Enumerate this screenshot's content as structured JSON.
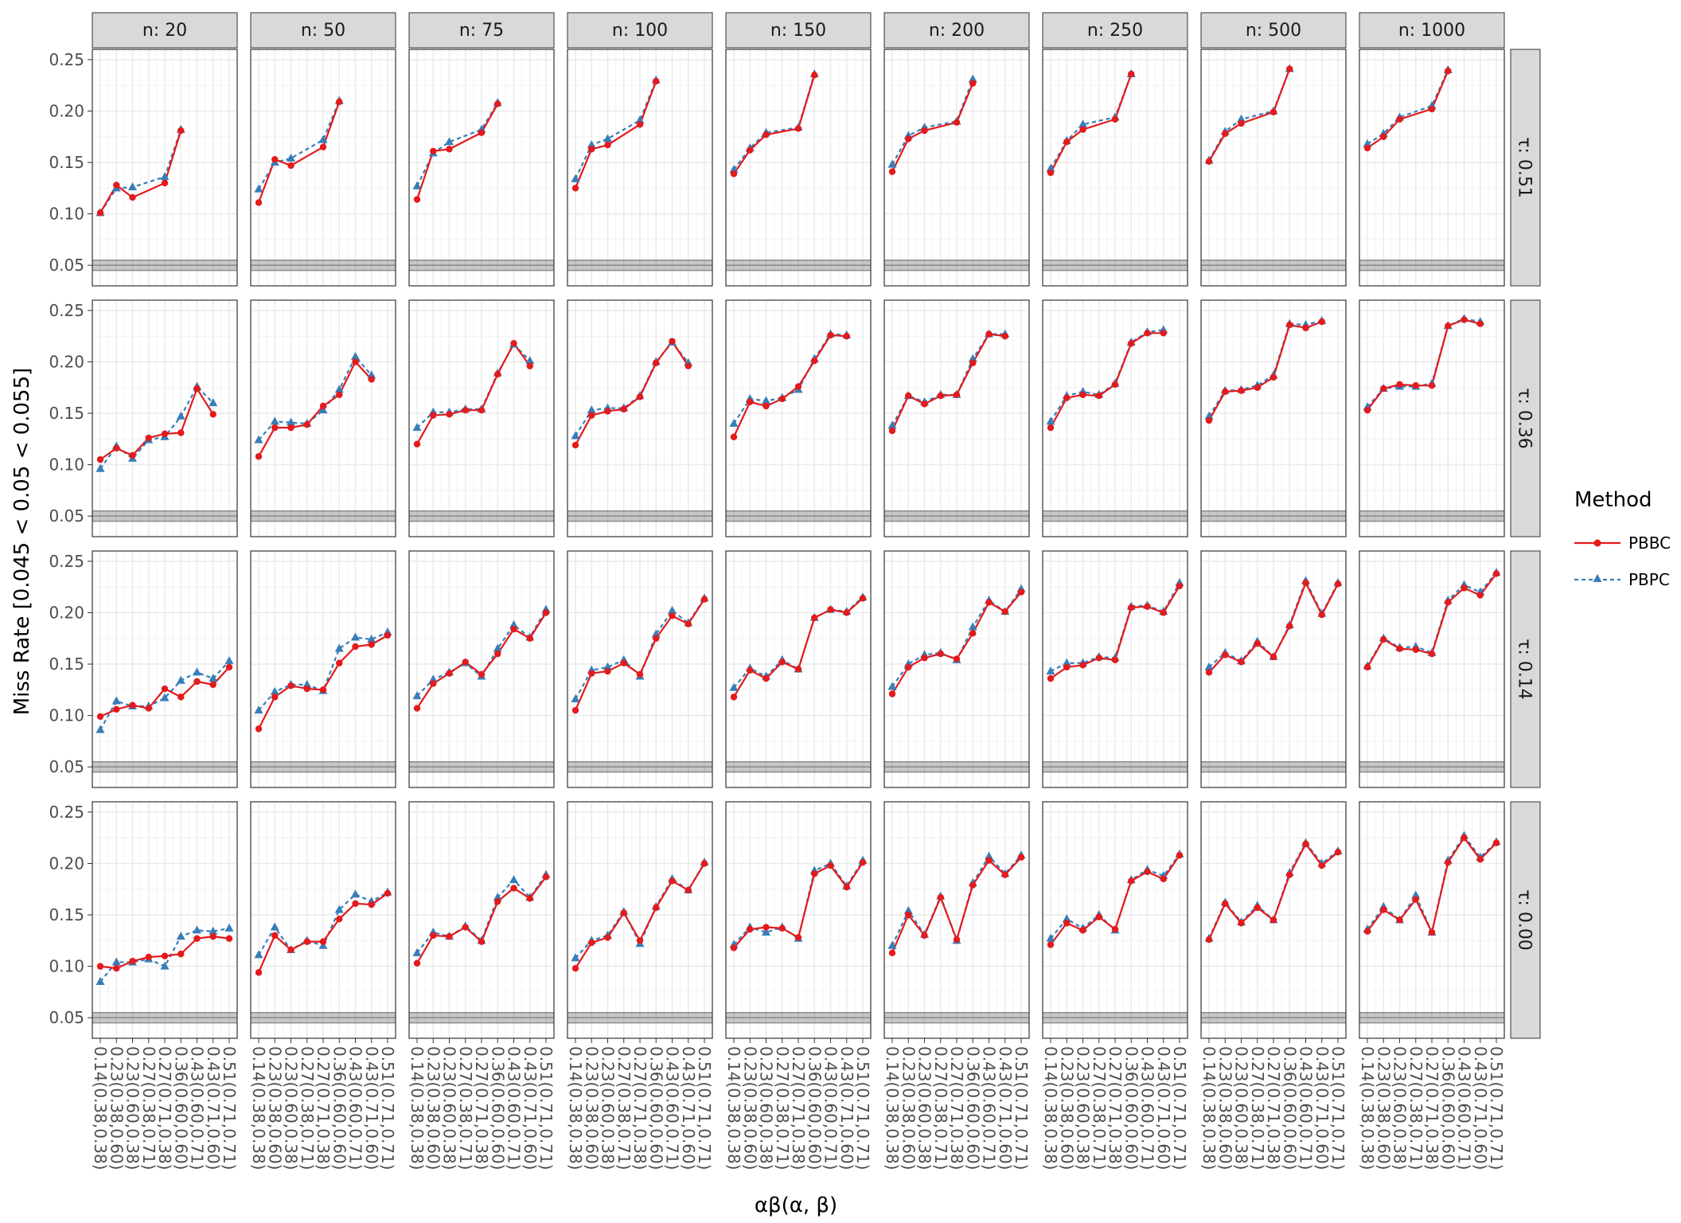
{
  "chart_data": {
    "type": "line",
    "xlabel": "αβ(α, β)",
    "ylabel": "Miss Rate [0.045 < 0.05 < 0.055]",
    "ylim": [
      0.03,
      0.26
    ],
    "yticks": [
      "0.05",
      "0.10",
      "0.15",
      "0.20",
      "0.25"
    ],
    "reference_band": [
      0.045,
      0.055
    ],
    "reference_line": 0.05,
    "grid": true,
    "legend": {
      "title": "Method",
      "position": "right",
      "entries": [
        {
          "name": "PBBC",
          "color": "#e41a1c",
          "marker": "circle",
          "linestyle": "solid"
        },
        {
          "name": "PBPC",
          "color": "#377eb8",
          "marker": "triangle",
          "linestyle": "dashed"
        }
      ]
    },
    "x_categories": [
      "0.14(0.38,0.38)",
      "0.23(0.38,0.60)",
      "0.23(0.60,0.38)",
      "0.27(0.38,0.71)",
      "0.27(0.71,0.38)",
      "0.36(0.60,0.60)",
      "0.43(0.60,0.71)",
      "0.43(0.71,0.60)",
      "0.51(0.71,0.71)"
    ],
    "columns": [
      "n: 20",
      "n: 50",
      "n: 75",
      "n: 100",
      "n: 150",
      "n: 200",
      "n: 250",
      "n: 500",
      "n: 1000"
    ],
    "rows": [
      "τ: 0.51",
      "τ: 0.36",
      "τ: 0.14",
      "τ: 0.00"
    ],
    "panels": [
      [
        {
          "PBBC": [
            0.101,
            0.128,
            0.116,
            null,
            0.13,
            0.181,
            null,
            null,
            null
          ],
          "PBPC": [
            0.101,
            0.125,
            0.126,
            null,
            0.136,
            0.182,
            null,
            null,
            null
          ]
        },
        {
          "PBBC": [
            0.111,
            0.153,
            0.147,
            null,
            0.165,
            0.209,
            null,
            null,
            null
          ],
          "PBPC": [
            0.124,
            0.15,
            0.154,
            null,
            0.172,
            0.21,
            null,
            null,
            null
          ]
        },
        {
          "PBBC": [
            0.114,
            0.161,
            0.163,
            null,
            0.179,
            0.207,
            null,
            null,
            null
          ],
          "PBPC": [
            0.127,
            0.159,
            0.17,
            null,
            0.182,
            0.208,
            null,
            null,
            null
          ]
        },
        {
          "PBBC": [
            0.125,
            0.163,
            0.167,
            null,
            0.187,
            0.229,
            null,
            null,
            null
          ],
          "PBPC": [
            0.134,
            0.167,
            0.173,
            null,
            0.191,
            0.23,
            null,
            null,
            null
          ]
        },
        {
          "PBBC": [
            0.139,
            0.162,
            0.177,
            null,
            0.183,
            0.235,
            null,
            null,
            null
          ],
          "PBPC": [
            0.143,
            0.164,
            0.179,
            null,
            0.184,
            0.236,
            null,
            null,
            null
          ]
        },
        {
          "PBBC": [
            0.141,
            0.173,
            0.181,
            null,
            0.189,
            0.227,
            null,
            null,
            null
          ],
          "PBPC": [
            0.148,
            0.176,
            0.184,
            null,
            0.19,
            0.231,
            null,
            null,
            null
          ]
        },
        {
          "PBBC": [
            0.14,
            0.17,
            0.182,
            null,
            0.192,
            0.236,
            null,
            null,
            null
          ],
          "PBPC": [
            0.144,
            0.171,
            0.187,
            null,
            0.194,
            0.236,
            null,
            null,
            null
          ]
        },
        {
          "PBBC": [
            0.151,
            0.178,
            0.188,
            null,
            0.199,
            0.241,
            null,
            null,
            null
          ],
          "PBPC": [
            0.152,
            0.18,
            0.192,
            null,
            0.2,
            0.241,
            null,
            null,
            null
          ]
        },
        {
          "PBBC": [
            0.164,
            0.175,
            0.192,
            null,
            0.202,
            0.239,
            null,
            null,
            null
          ],
          "PBPC": [
            0.168,
            0.178,
            0.194,
            null,
            0.205,
            0.24,
            null,
            null,
            null
          ]
        }
      ],
      [
        {
          "PBBC": [
            0.105,
            0.116,
            0.109,
            0.126,
            0.13,
            0.131,
            0.174,
            0.149,
            null
          ],
          "PBPC": [
            0.096,
            0.118,
            0.106,
            0.124,
            0.127,
            0.147,
            0.176,
            0.16,
            null
          ]
        },
        {
          "PBBC": [
            0.108,
            0.136,
            0.136,
            0.139,
            0.157,
            0.168,
            0.2,
            0.183,
            null
          ],
          "PBPC": [
            0.124,
            0.142,
            0.141,
            0.14,
            0.153,
            0.173,
            0.205,
            0.187,
            null
          ]
        },
        {
          "PBBC": [
            0.12,
            0.148,
            0.149,
            0.153,
            0.153,
            0.188,
            0.218,
            0.196,
            null
          ],
          "PBPC": [
            0.136,
            0.151,
            0.151,
            0.154,
            0.154,
            0.189,
            0.217,
            0.201,
            null
          ]
        },
        {
          "PBBC": [
            0.119,
            0.148,
            0.152,
            0.154,
            0.166,
            0.199,
            0.22,
            0.196,
            null
          ],
          "PBPC": [
            0.128,
            0.153,
            0.155,
            0.155,
            0.167,
            0.2,
            0.219,
            0.199,
            null
          ]
        },
        {
          "PBBC": [
            0.127,
            0.161,
            0.157,
            0.164,
            0.176,
            0.201,
            0.226,
            0.225,
            null
          ],
          "PBPC": [
            0.14,
            0.164,
            0.162,
            0.165,
            0.173,
            0.203,
            0.227,
            0.226,
            null
          ]
        },
        {
          "PBBC": [
            0.133,
            0.167,
            0.159,
            0.167,
            0.168,
            0.199,
            0.227,
            0.225,
            null
          ],
          "PBPC": [
            0.138,
            0.167,
            0.161,
            0.168,
            0.168,
            0.203,
            0.227,
            0.227,
            null
          ]
        },
        {
          "PBBC": [
            0.136,
            0.165,
            0.168,
            0.167,
            0.178,
            0.218,
            0.228,
            0.228,
            null
          ],
          "PBPC": [
            0.142,
            0.167,
            0.171,
            0.168,
            0.179,
            0.219,
            0.229,
            0.231,
            null
          ]
        },
        {
          "PBBC": [
            0.143,
            0.171,
            0.172,
            0.175,
            0.185,
            0.236,
            0.233,
            0.239,
            null
          ],
          "PBPC": [
            0.147,
            0.172,
            0.173,
            0.177,
            0.187,
            0.237,
            0.236,
            0.24,
            null
          ]
        },
        {
          "PBBC": [
            0.153,
            0.174,
            0.178,
            0.177,
            0.177,
            0.235,
            0.241,
            0.237,
            null
          ],
          "PBPC": [
            0.156,
            0.174,
            0.176,
            0.176,
            0.179,
            0.235,
            0.242,
            0.239,
            null
          ]
        }
      ],
      [
        {
          "PBBC": [
            0.099,
            0.106,
            0.11,
            0.107,
            0.126,
            0.118,
            0.133,
            0.13,
            0.147
          ],
          "PBPC": [
            0.086,
            0.114,
            0.109,
            0.109,
            0.117,
            0.134,
            0.142,
            0.136,
            0.153
          ]
        },
        {
          "PBBC": [
            0.087,
            0.118,
            0.129,
            0.126,
            0.125,
            0.151,
            0.167,
            0.169,
            0.178
          ],
          "PBPC": [
            0.105,
            0.123,
            0.13,
            0.13,
            0.124,
            0.165,
            0.176,
            0.174,
            0.181
          ]
        },
        {
          "PBBC": [
            0.107,
            0.131,
            0.141,
            0.152,
            0.14,
            0.16,
            0.184,
            0.175,
            0.2
          ],
          "PBPC": [
            0.119,
            0.135,
            0.142,
            0.151,
            0.138,
            0.165,
            0.188,
            0.176,
            0.203
          ]
        },
        {
          "PBBC": [
            0.105,
            0.141,
            0.143,
            0.151,
            0.14,
            0.175,
            0.197,
            0.189,
            0.213
          ],
          "PBPC": [
            0.116,
            0.144,
            0.147,
            0.154,
            0.138,
            0.179,
            0.202,
            0.19,
            0.214
          ]
        },
        {
          "PBBC": [
            0.118,
            0.144,
            0.136,
            0.152,
            0.145,
            0.195,
            0.203,
            0.2,
            0.214
          ],
          "PBPC": [
            0.127,
            0.146,
            0.138,
            0.154,
            0.145,
            0.195,
            0.203,
            0.201,
            0.215
          ]
        },
        {
          "PBBC": [
            0.121,
            0.147,
            0.156,
            0.16,
            0.155,
            0.18,
            0.21,
            0.201,
            0.22
          ],
          "PBPC": [
            0.128,
            0.15,
            0.159,
            0.161,
            0.154,
            0.186,
            0.212,
            0.201,
            0.223
          ]
        },
        {
          "PBBC": [
            0.136,
            0.147,
            0.149,
            0.156,
            0.154,
            0.205,
            0.206,
            0.2,
            0.226
          ],
          "PBPC": [
            0.143,
            0.151,
            0.151,
            0.157,
            0.156,
            0.206,
            0.207,
            0.201,
            0.229
          ]
        },
        {
          "PBBC": [
            0.142,
            0.159,
            0.152,
            0.17,
            0.157,
            0.187,
            0.229,
            0.198,
            0.228
          ],
          "PBPC": [
            0.147,
            0.161,
            0.153,
            0.172,
            0.157,
            0.188,
            0.231,
            0.199,
            0.229
          ]
        },
        {
          "PBBC": [
            0.147,
            0.174,
            0.165,
            0.164,
            0.16,
            0.21,
            0.224,
            0.217,
            0.238
          ],
          "PBPC": [
            0.148,
            0.175,
            0.166,
            0.167,
            0.161,
            0.212,
            0.227,
            0.22,
            0.239
          ]
        }
      ],
      [
        {
          "PBBC": [
            0.1,
            0.098,
            0.105,
            0.109,
            0.11,
            0.112,
            0.127,
            0.129,
            0.127
          ],
          "PBPC": [
            0.085,
            0.104,
            0.104,
            0.107,
            0.1,
            0.129,
            0.135,
            0.134,
            0.137
          ]
        },
        {
          "PBBC": [
            0.094,
            0.13,
            0.116,
            0.124,
            0.124,
            0.146,
            0.161,
            0.16,
            0.171
          ],
          "PBPC": [
            0.111,
            0.138,
            0.116,
            0.125,
            0.12,
            0.155,
            0.17,
            0.163,
            0.172
          ]
        },
        {
          "PBBC": [
            0.103,
            0.13,
            0.129,
            0.138,
            0.124,
            0.163,
            0.176,
            0.166,
            0.187
          ],
          "PBPC": [
            0.113,
            0.133,
            0.129,
            0.139,
            0.125,
            0.167,
            0.184,
            0.167,
            0.189
          ]
        },
        {
          "PBBC": [
            0.098,
            0.123,
            0.128,
            0.152,
            0.125,
            0.157,
            0.183,
            0.174,
            0.2
          ],
          "PBPC": [
            0.108,
            0.125,
            0.13,
            0.153,
            0.122,
            0.158,
            0.185,
            0.174,
            0.201
          ]
        },
        {
          "PBBC": [
            0.118,
            0.136,
            0.138,
            0.137,
            0.128,
            0.19,
            0.198,
            0.177,
            0.201
          ],
          "PBPC": [
            0.121,
            0.138,
            0.133,
            0.138,
            0.127,
            0.193,
            0.2,
            0.178,
            0.203
          ]
        },
        {
          "PBBC": [
            0.113,
            0.15,
            0.13,
            0.167,
            0.126,
            0.179,
            0.203,
            0.189,
            0.206
          ],
          "PBPC": [
            0.12,
            0.154,
            0.131,
            0.168,
            0.125,
            0.181,
            0.207,
            0.19,
            0.208
          ]
        },
        {
          "PBBC": [
            0.121,
            0.142,
            0.135,
            0.148,
            0.136,
            0.183,
            0.192,
            0.185,
            0.208
          ],
          "PBPC": [
            0.127,
            0.146,
            0.137,
            0.15,
            0.135,
            0.184,
            0.194,
            0.188,
            0.209
          ]
        },
        {
          "PBBC": [
            0.126,
            0.161,
            0.142,
            0.157,
            0.145,
            0.189,
            0.219,
            0.198,
            0.211
          ],
          "PBPC": [
            0.127,
            0.162,
            0.143,
            0.159,
            0.145,
            0.191,
            0.22,
            0.2,
            0.212
          ]
        },
        {
          "PBBC": [
            0.134,
            0.155,
            0.145,
            0.165,
            0.133,
            0.201,
            0.225,
            0.204,
            0.22
          ],
          "PBPC": [
            0.136,
            0.158,
            0.145,
            0.169,
            0.133,
            0.203,
            0.227,
            0.206,
            0.221
          ]
        }
      ]
    ]
  }
}
